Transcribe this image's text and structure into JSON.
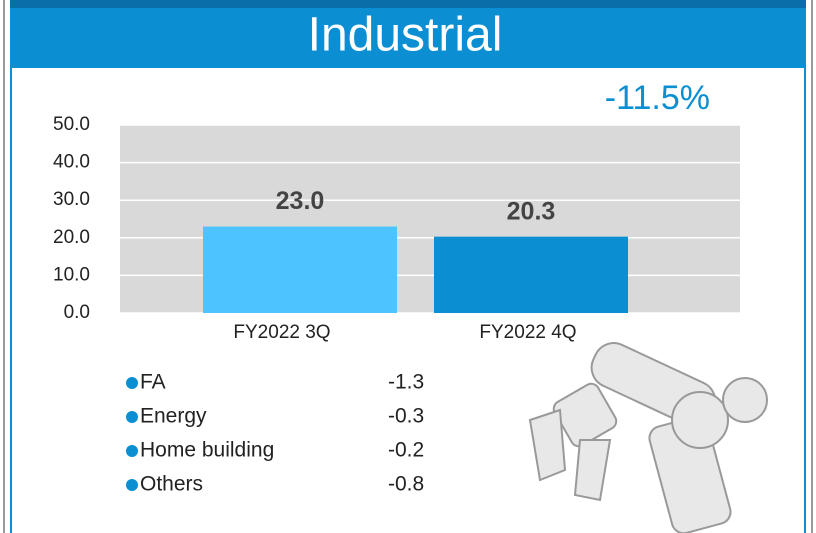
{
  "chart_data": {
    "type": "bar",
    "title": "Industrial",
    "annotation": "-11.5%",
    "categories": [
      "FY2022 3Q",
      "FY2022 4Q"
    ],
    "values": [
      23.0,
      20.3
    ],
    "value_labels": [
      "23.0",
      "20.3"
    ],
    "colors": [
      "#4dc4ff",
      "#0b8fd2"
    ],
    "ylim": [
      0,
      50
    ],
    "yticks": [
      {
        "value": 0,
        "label": "0.0"
      },
      {
        "value": 10,
        "label": "10.0"
      },
      {
        "value": 20,
        "label": "20.0"
      },
      {
        "value": 30,
        "label": "30.0"
      },
      {
        "value": 40,
        "label": "40.0"
      },
      {
        "value": 50,
        "label": "50.0"
      }
    ],
    "grid": true,
    "breakdown": [
      {
        "name": "FA",
        "value": -1.3
      },
      {
        "name": "Energy",
        "value": -0.3
      },
      {
        "name": "Home building",
        "value": -0.2
      },
      {
        "name": "Others",
        "value": -0.8
      }
    ]
  }
}
